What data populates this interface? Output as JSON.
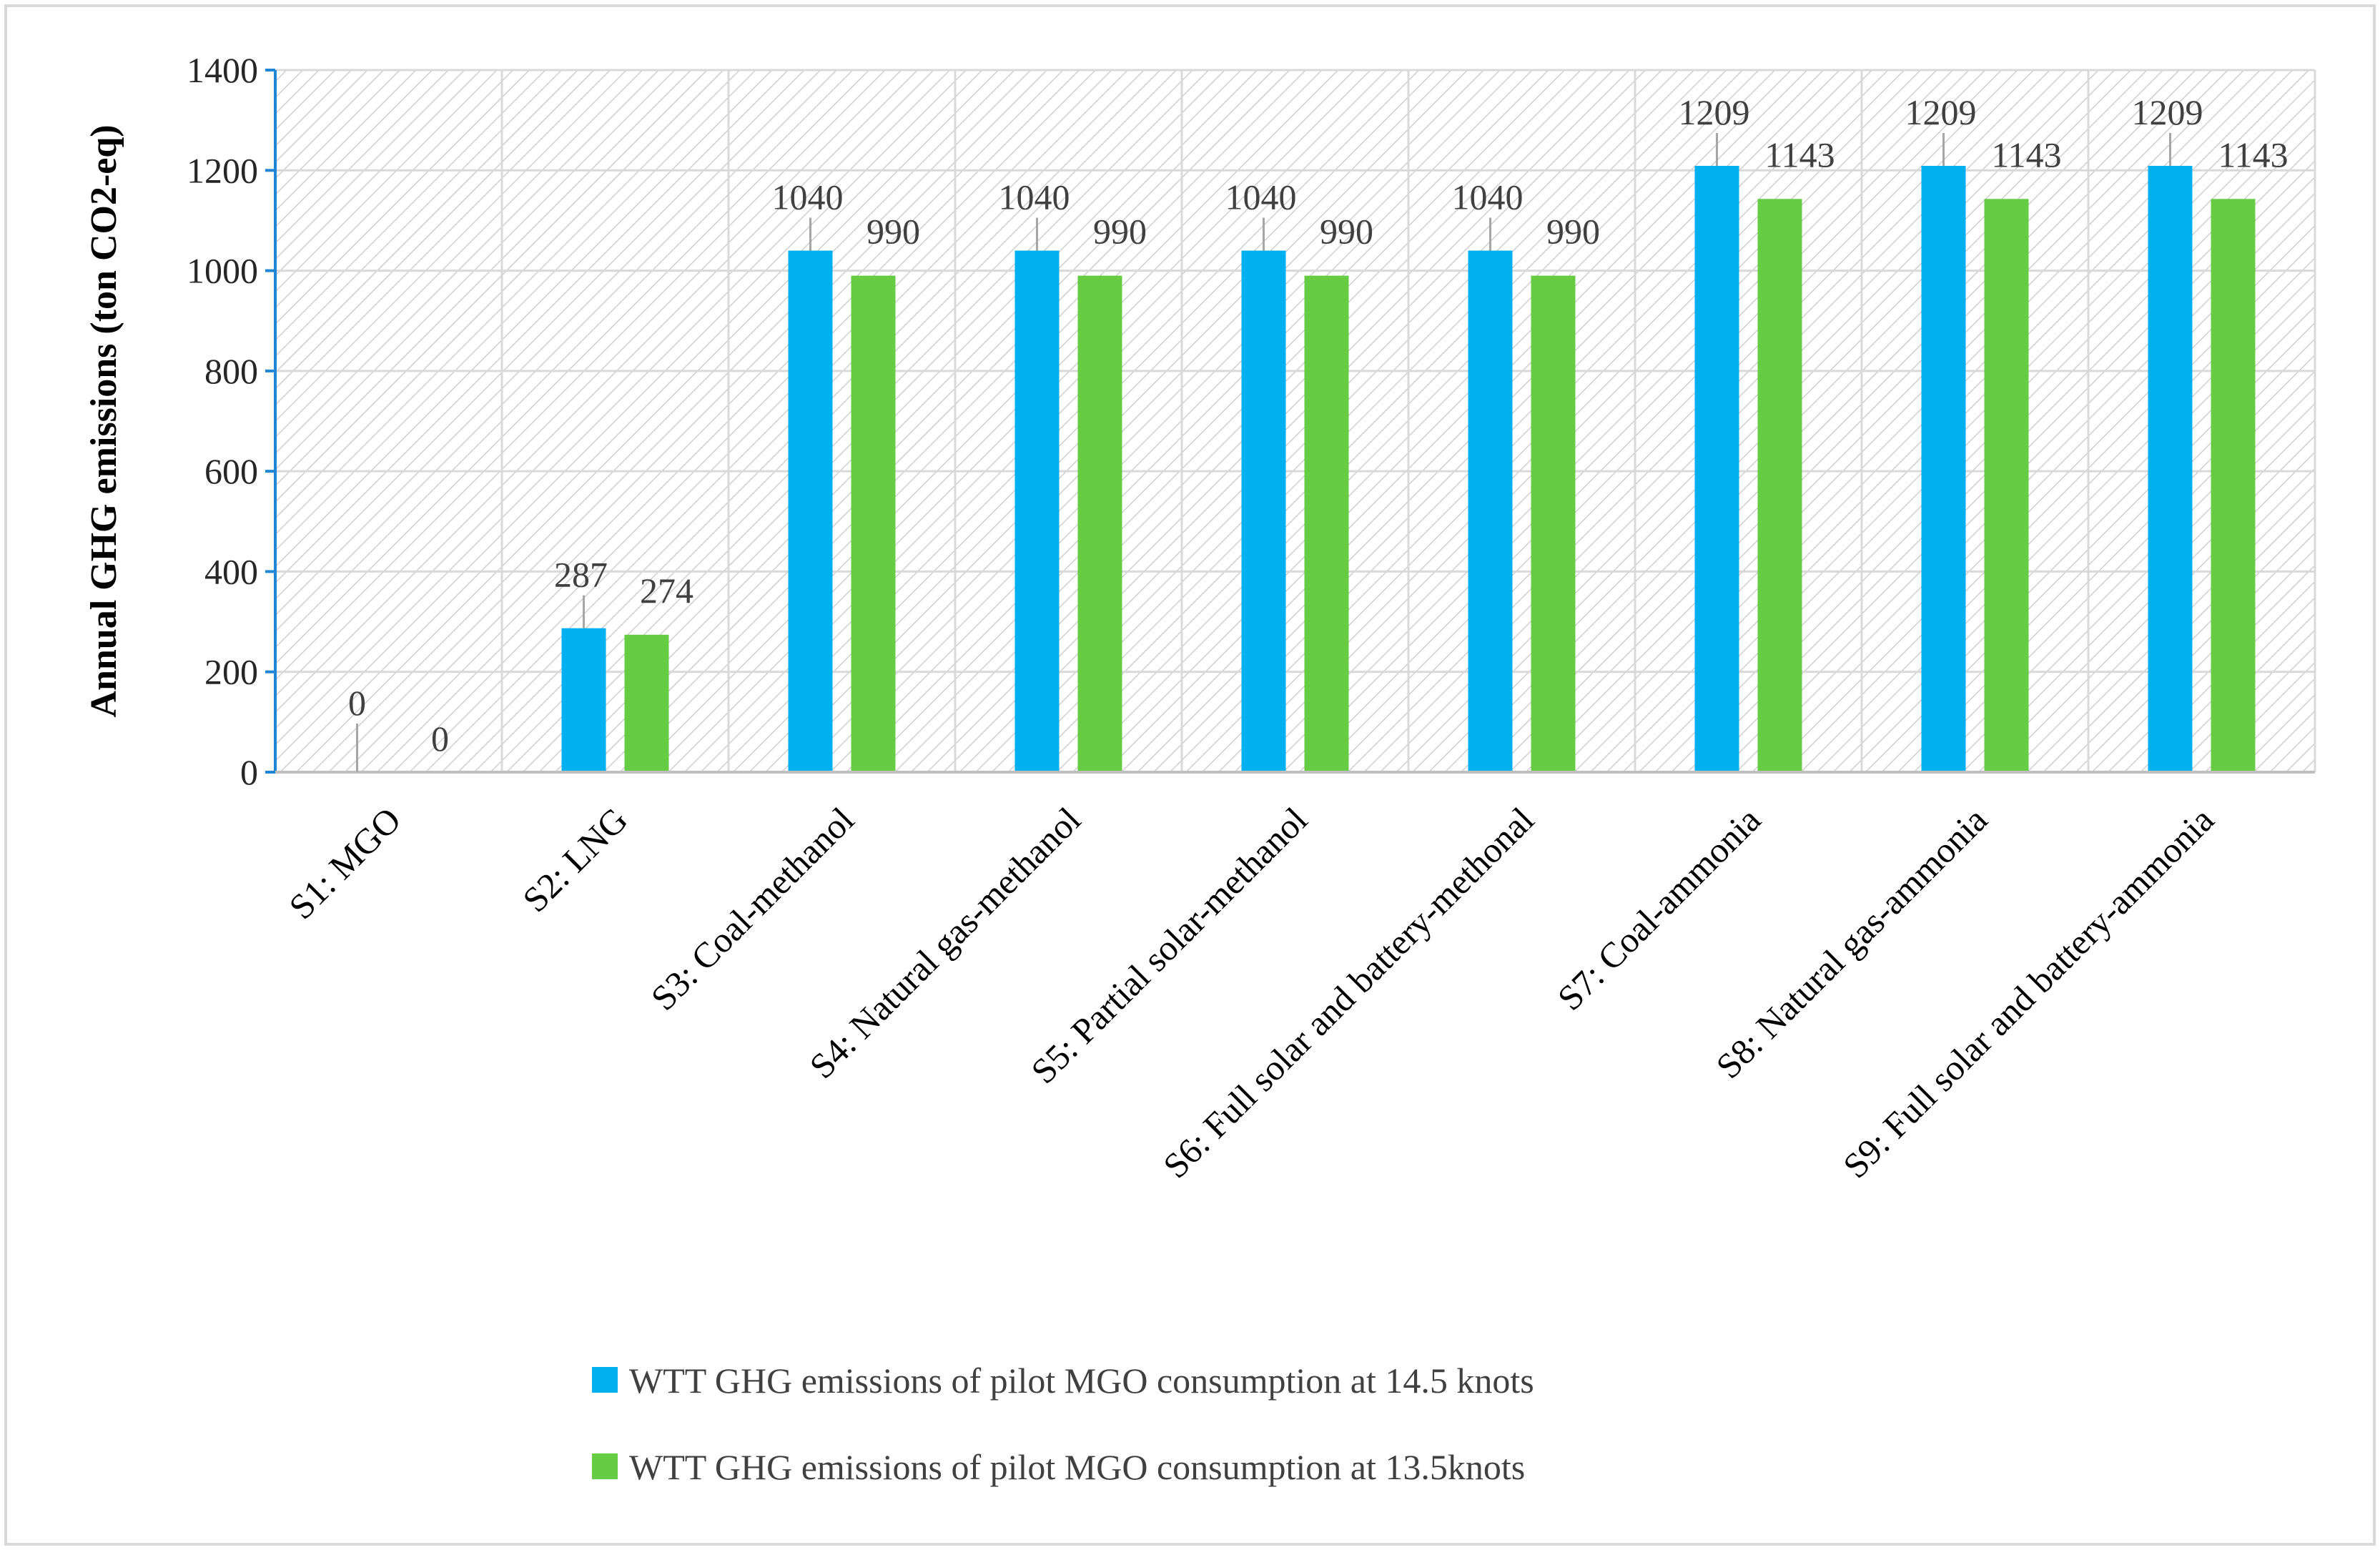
{
  "chart_data": {
    "type": "bar",
    "title": "",
    "xlabel": "",
    "ylabel": "Annual GHG emissions (ton CO2-eq)",
    "ylim": [
      0,
      1400
    ],
    "yticks": [
      0,
      200,
      400,
      600,
      800,
      1000,
      1200,
      1400
    ],
    "grid": true,
    "legend_position": "bottom",
    "categories": [
      "S1: MGO",
      "S2: LNG",
      "S3: Coal-methanol",
      "S4: Natural gas-methanol",
      "S5: Partial solar-methanol",
      "S6: Full solar and battery-methonal",
      "S7: Coal-ammonia",
      "S8: Natural gas-ammonia",
      "S9: Full solar and battery-ammonia"
    ],
    "series": [
      {
        "name": "WTT GHG emissions of pilot MGO consumption at 14.5 knots",
        "color": "#00b0f0",
        "values": [
          0,
          287,
          1040,
          1040,
          1040,
          1040,
          1209,
          1209,
          1209
        ]
      },
      {
        "name": "WTT GHG emissions of pilot MGO consumption at 13.5knots",
        "color": "#66cc44",
        "values": [
          0,
          274,
          990,
          990,
          990,
          990,
          1143,
          1143,
          1143
        ]
      }
    ]
  },
  "colors": {
    "axis": "#1f86d6",
    "grid": "#d9d9d9",
    "hatch": "#d0d0d0",
    "leader": "#a6a6a6"
  }
}
